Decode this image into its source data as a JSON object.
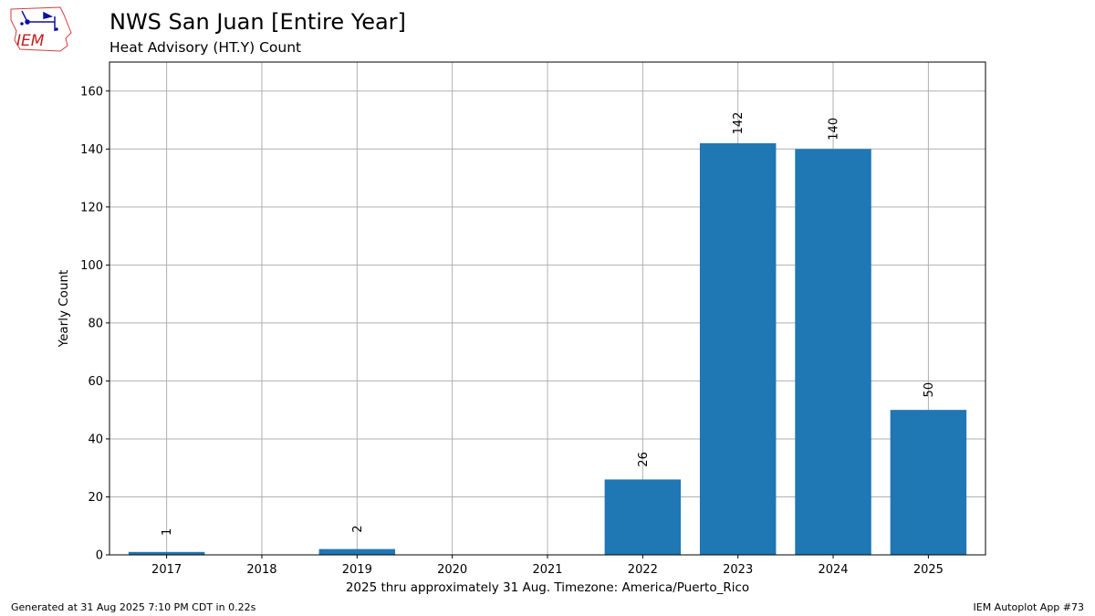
{
  "logo": {
    "text": "IEM"
  },
  "footer": {
    "generated": "Generated at 31 Aug 2025 7:10 PM CDT in 0.22s",
    "app": "IEM Autoplot App #73"
  },
  "chart_data": {
    "type": "bar",
    "title": "NWS San Juan [Entire Year]",
    "subtitle": "Heat Advisory (HT.Y) Count",
    "xlabel": "2025 thru approximately 31 Aug. Timezone: America/Puerto_Rico",
    "ylabel": "Yearly Count",
    "categories": [
      "2017",
      "2018",
      "2019",
      "2020",
      "2021",
      "2022",
      "2023",
      "2024",
      "2025"
    ],
    "values": [
      1,
      0,
      2,
      0,
      0,
      26,
      142,
      140,
      50
    ],
    "data_labels": [
      "1",
      "",
      "2",
      "",
      "",
      "26",
      "142",
      "140",
      "50"
    ],
    "yticks": [
      0,
      20,
      40,
      60,
      80,
      100,
      120,
      140,
      160
    ],
    "ylim": [
      0,
      170
    ],
    "grid": true,
    "colors": {
      "bar": "#1f77b4",
      "grid": "#b0b0b0"
    }
  }
}
